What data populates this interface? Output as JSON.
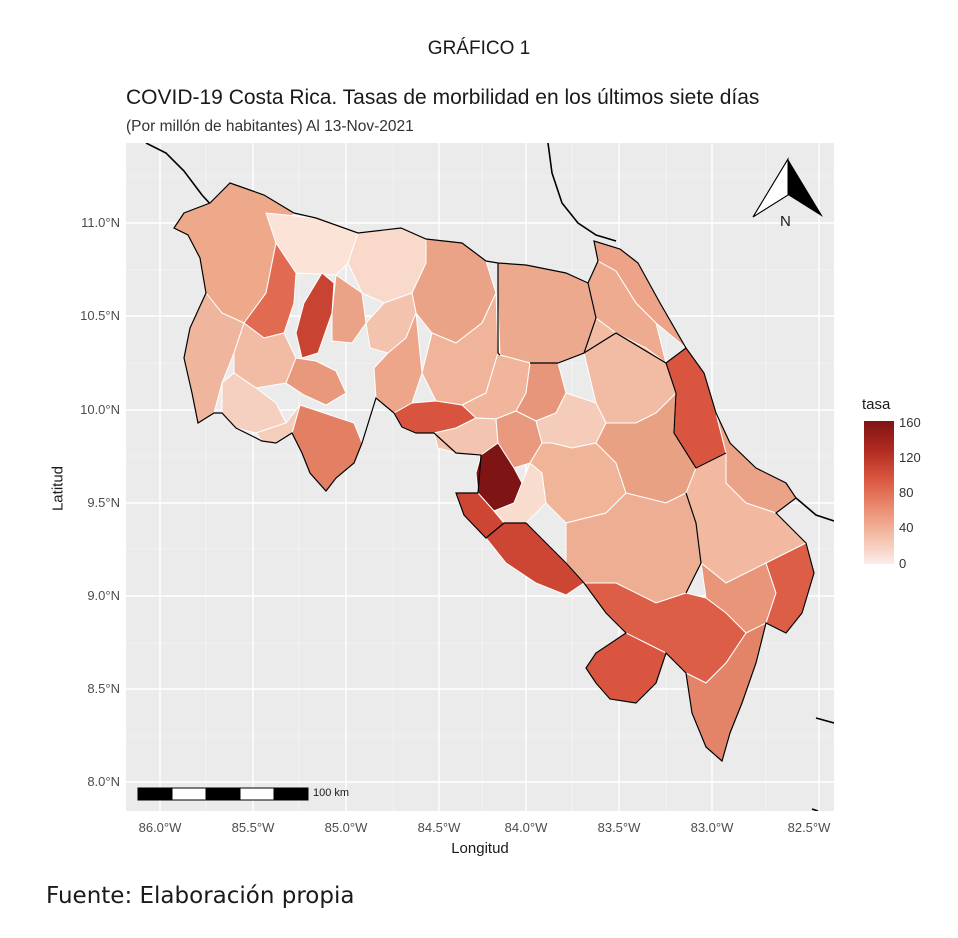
{
  "figure_label": "GRÁFICO 1",
  "title": "COVID-19 Costa Rica. Tasas de morbilidad en los últimos siete días",
  "subtitle": "(Por millón de habitantes) Al 13-Nov-2021",
  "source": "Fuente: Elaboración propia",
  "map": {
    "axis_x_label": "Longitud",
    "axis_y_label": "Latitud",
    "x_ticks": [
      "86.0°W",
      "85.5°W",
      "85.0°W",
      "84.5°W",
      "84.0°W",
      "83.5°W",
      "83.0°W",
      "82.5°W"
    ],
    "y_ticks": [
      "11.0°N",
      "10.5°N",
      "10.0°N",
      "9.5°N",
      "9.0°N",
      "8.5°N",
      "8.0°N"
    ],
    "x_range_deg_w": [
      86.18,
      82.36
    ],
    "y_range_deg_n": [
      7.93,
      11.4
    ],
    "background_color": "#ebebeb",
    "grid": true,
    "north_arrow_label": "N",
    "scale_bar_label": "100 km"
  },
  "legend": {
    "title": "tasa",
    "ticks": [
      "160",
      "120",
      "80",
      "40",
      "0"
    ],
    "range": [
      0,
      160
    ],
    "colors": [
      "#fdecea",
      "#f4bda7",
      "#e98a6e",
      "#d9553f",
      "#b02a21",
      "#7f1414"
    ],
    "position": "right"
  }
}
